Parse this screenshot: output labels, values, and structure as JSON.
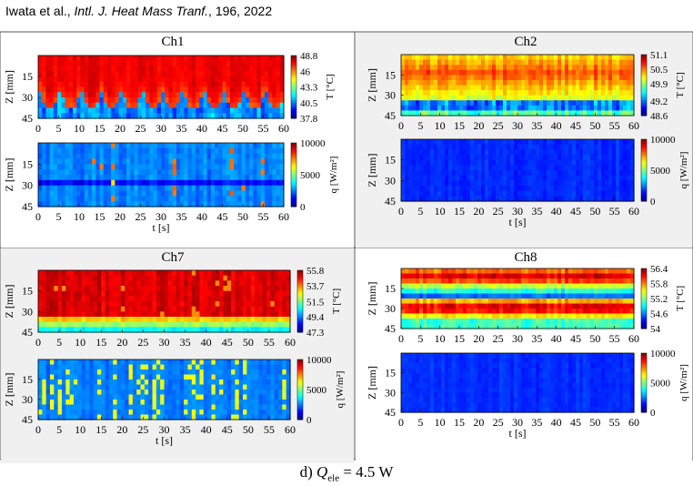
{
  "citation": {
    "authors": "Iwata et al., ",
    "journal": "Intl. J. Heat Mass Tranf.",
    "details": ", 196, 2022"
  },
  "caption": {
    "prefix": "d) ",
    "symbol": "Q",
    "subscript": "ele",
    "suffix": " = 4.5 W"
  },
  "chart_data": [
    {
      "type": "heatmap",
      "panel": "Ch1",
      "title": "Ch1",
      "x": {
        "label": "",
        "range": [
          0,
          60
        ],
        "ticks": [
          0,
          5,
          10,
          15,
          20,
          25,
          30,
          35,
          40,
          45,
          50,
          55,
          60
        ]
      },
      "y": {
        "label": "Z [mm]",
        "range": [
          0,
          45
        ],
        "ticks": [
          15,
          30,
          45
        ]
      },
      "colorbar": {
        "label": "T [°C]",
        "ticks": [
          48.8,
          46.0,
          43.3,
          40.5,
          37.8
        ],
        "range": [
          37.8,
          48.8
        ]
      },
      "background": "#ffffff",
      "pattern": "hot top region with periodic cold plumes rising from bottom, period ~5 s"
    },
    {
      "type": "heatmap",
      "panel": "Ch1",
      "x": {
        "label": "t [s]",
        "range": [
          0,
          60
        ],
        "ticks": [
          0,
          5,
          10,
          15,
          20,
          25,
          30,
          35,
          40,
          45,
          50,
          55,
          60
        ]
      },
      "y": {
        "label": "Z [mm]",
        "range": [
          0,
          45
        ],
        "ticks": [
          15,
          30,
          45
        ]
      },
      "colorbar": {
        "label": "q [W/m²]",
        "ticks": [
          10000,
          5000,
          0
        ],
        "range": [
          0,
          10000
        ]
      },
      "background": "#ffffff",
      "pattern": "mostly low heat flux with dense vertical streaks and a darker band near Z=30"
    },
    {
      "type": "heatmap",
      "panel": "Ch2",
      "title": "Ch2",
      "x": {
        "label": "",
        "range": [
          0,
          60
        ],
        "ticks": [
          0,
          5,
          10,
          15,
          20,
          25,
          30,
          35,
          40,
          45,
          50,
          55,
          60
        ]
      },
      "y": {
        "label": "Z [mm]",
        "range": [
          0,
          45
        ],
        "ticks": [
          15,
          30,
          45
        ]
      },
      "colorbar": {
        "label": "T [°C]",
        "ticks": [
          51.1,
          50.5,
          49.9,
          49.2,
          48.6
        ],
        "range": [
          48.6,
          51.1
        ]
      },
      "background": "#f0f0f0",
      "pattern": "warm horizontal band in upper half, cold band near Z=35"
    },
    {
      "type": "heatmap",
      "panel": "Ch2",
      "x": {
        "label": "t [s]",
        "range": [
          0,
          60
        ],
        "ticks": [
          0,
          5,
          10,
          15,
          20,
          25,
          30,
          35,
          40,
          45,
          50,
          55,
          60
        ]
      },
      "y": {
        "label": "Z [mm]",
        "range": [
          0,
          45
        ],
        "ticks": [
          15,
          30,
          45
        ]
      },
      "colorbar": {
        "label": "q [W/m²]",
        "ticks": [
          10000,
          5000,
          0
        ],
        "range": [
          0,
          10000
        ]
      },
      "background": "#f0f0f0",
      "pattern": "uniformly low heat flux"
    },
    {
      "type": "heatmap",
      "panel": "Ch7",
      "title": "Ch7",
      "x": {
        "label": "",
        "range": [
          0,
          60
        ],
        "ticks": [
          0,
          5,
          10,
          15,
          20,
          25,
          30,
          35,
          40,
          45,
          50,
          55,
          60
        ]
      },
      "y": {
        "label": "Z [mm]",
        "range": [
          0,
          45
        ],
        "ticks": [
          15,
          30,
          45
        ]
      },
      "colorbar": {
        "label": "T [°C]",
        "ticks": [
          55.8,
          53.7,
          51.5,
          49.4,
          47.3
        ],
        "range": [
          47.3,
          55.8
        ]
      },
      "background": "#f0f0f0",
      "pattern": "mostly hot with cold layer at bottom and frequent vertical streaks"
    },
    {
      "type": "heatmap",
      "panel": "Ch7",
      "x": {
        "label": "t [s]",
        "range": [
          0,
          60
        ],
        "ticks": [
          0,
          5,
          10,
          15,
          20,
          25,
          30,
          35,
          40,
          45,
          50,
          55,
          60
        ]
      },
      "y": {
        "label": "Z [mm]",
        "range": [
          0,
          45
        ],
        "ticks": [
          15,
          30,
          45
        ]
      },
      "colorbar": {
        "label": "q [W/m²]",
        "ticks": [
          10000,
          5000,
          0
        ],
        "range": [
          0,
          10000
        ]
      },
      "background": "#f0f0f0",
      "pattern": "many thin vertical high-flux streaks over low background"
    },
    {
      "type": "heatmap",
      "panel": "Ch8",
      "title": "Ch8",
      "x": {
        "label": "",
        "range": [
          0,
          60
        ],
        "ticks": [
          0,
          5,
          10,
          15,
          20,
          25,
          30,
          35,
          40,
          45,
          50,
          55,
          60
        ]
      },
      "y": {
        "label": "Z [mm]",
        "range": [
          0,
          45
        ],
        "ticks": [
          15,
          30,
          45
        ]
      },
      "colorbar": {
        "label": "T [°C]",
        "ticks": [
          56.4,
          55.8,
          55.2,
          54.6,
          54.0
        ],
        "range": [
          54.0,
          56.4
        ]
      },
      "background": "#ffffff",
      "pattern": "layered warm bands with cold stripe near Z=25"
    },
    {
      "type": "heatmap",
      "panel": "Ch8",
      "x": {
        "label": "t [s]",
        "range": [
          0,
          60
        ],
        "ticks": [
          0,
          5,
          10,
          15,
          20,
          25,
          30,
          35,
          40,
          45,
          50,
          55,
          60
        ]
      },
      "y": {
        "label": "Z [mm]",
        "range": [
          0,
          45
        ],
        "ticks": [
          15,
          30,
          45
        ]
      },
      "colorbar": {
        "label": "q [W/m²]",
        "ticks": [
          10000,
          5000,
          0
        ],
        "range": [
          0,
          10000
        ]
      },
      "background": "#ffffff",
      "pattern": "uniformly low heat flux"
    }
  ]
}
